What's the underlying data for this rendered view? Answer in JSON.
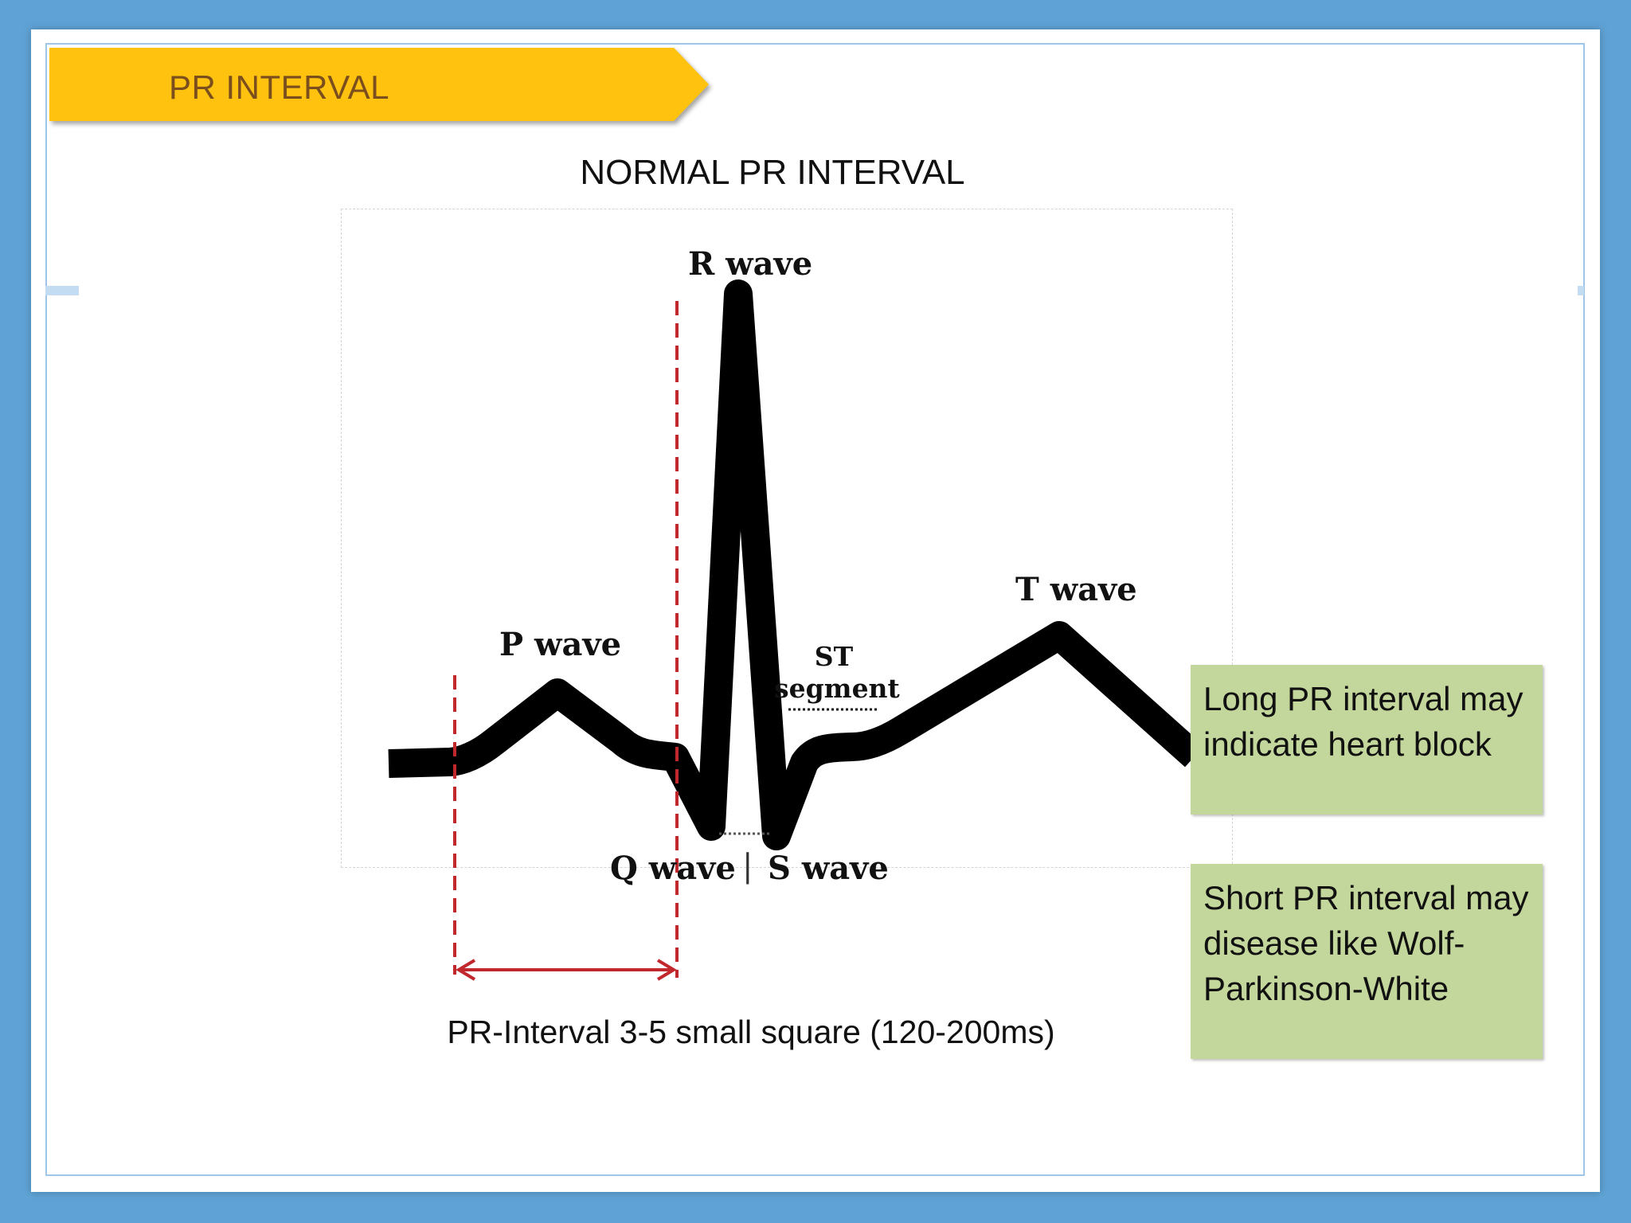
{
  "banner": {
    "label": "PR INTERVAL"
  },
  "diagram": {
    "title": "NORMAL PR INTERVAL",
    "labels": {
      "r_wave": "R wave",
      "p_wave": "P wave",
      "t_wave": "T wave",
      "st_segment_line1": "ST",
      "st_segment_line2": "segment",
      "q_wave": "Q wave",
      "separator": "|",
      "s_wave": "S wave"
    },
    "caption": "PR-Interval 3-5 small square (120-200ms)"
  },
  "notes": {
    "long": "Long PR interval may indicate heart block",
    "short": "Short PR interval may disease like Wolf-Parkinson-White"
  },
  "colors": {
    "background": "#5fa3d6",
    "banner": "#ffc20e",
    "banner_text": "#7a4e1d",
    "note_fill": "#c3d69b",
    "interval_marker": "#c0282d",
    "trace": "#000000"
  }
}
